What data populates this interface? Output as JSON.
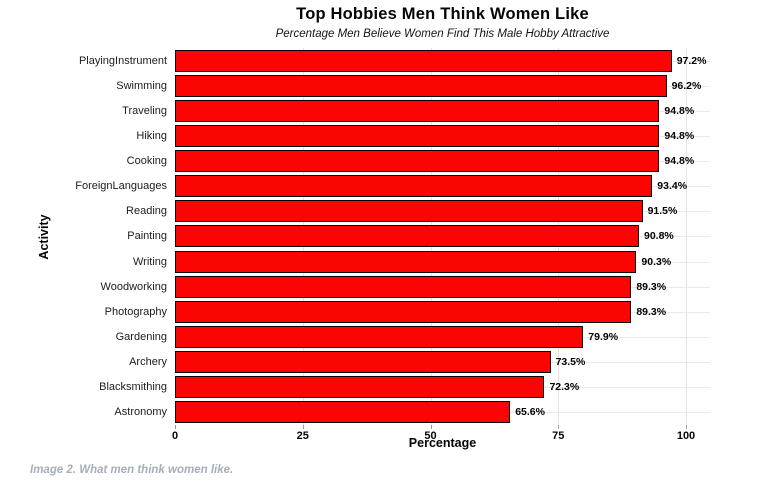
{
  "chart_data": {
    "type": "bar",
    "orientation": "horizontal",
    "title": "Top Hobbies Men Think Women Like",
    "subtitle": "Percentage Men Believe Women Find This Male Hobby Attractive",
    "xlabel": "Percentage",
    "ylabel": "Activity",
    "xlim": [
      0,
      100
    ],
    "xticks": [
      0,
      25,
      50,
      75,
      100
    ],
    "grid": true,
    "legend": "none",
    "bar_color": "#fa0404",
    "bar_edge_color": "#0a0202",
    "categories": [
      "PlayingInstrument",
      "Swimming",
      "Traveling",
      "Hiking",
      "Cooking",
      "ForeignLanguages",
      "Reading",
      "Painting",
      "Writing",
      "Woodworking",
      "Photography",
      "Gardening",
      "Archery",
      "Blacksmithing",
      "Astronomy"
    ],
    "values": [
      97.2,
      96.2,
      94.8,
      94.8,
      94.8,
      93.4,
      91.5,
      90.8,
      90.3,
      89.3,
      89.3,
      79.9,
      73.5,
      72.3,
      65.6
    ],
    "value_labels": [
      "97.2%",
      "96.2%",
      "94.8%",
      "94.8%",
      "94.8%",
      "93.4%",
      "91.5%",
      "90.8%",
      "90.3%",
      "89.3%",
      "89.3%",
      "79.9%",
      "73.5%",
      "72.3%",
      "65.6%"
    ]
  },
  "caption": {
    "text": "Image 2. What men think women like.",
    "color": "#a6aeba"
  }
}
